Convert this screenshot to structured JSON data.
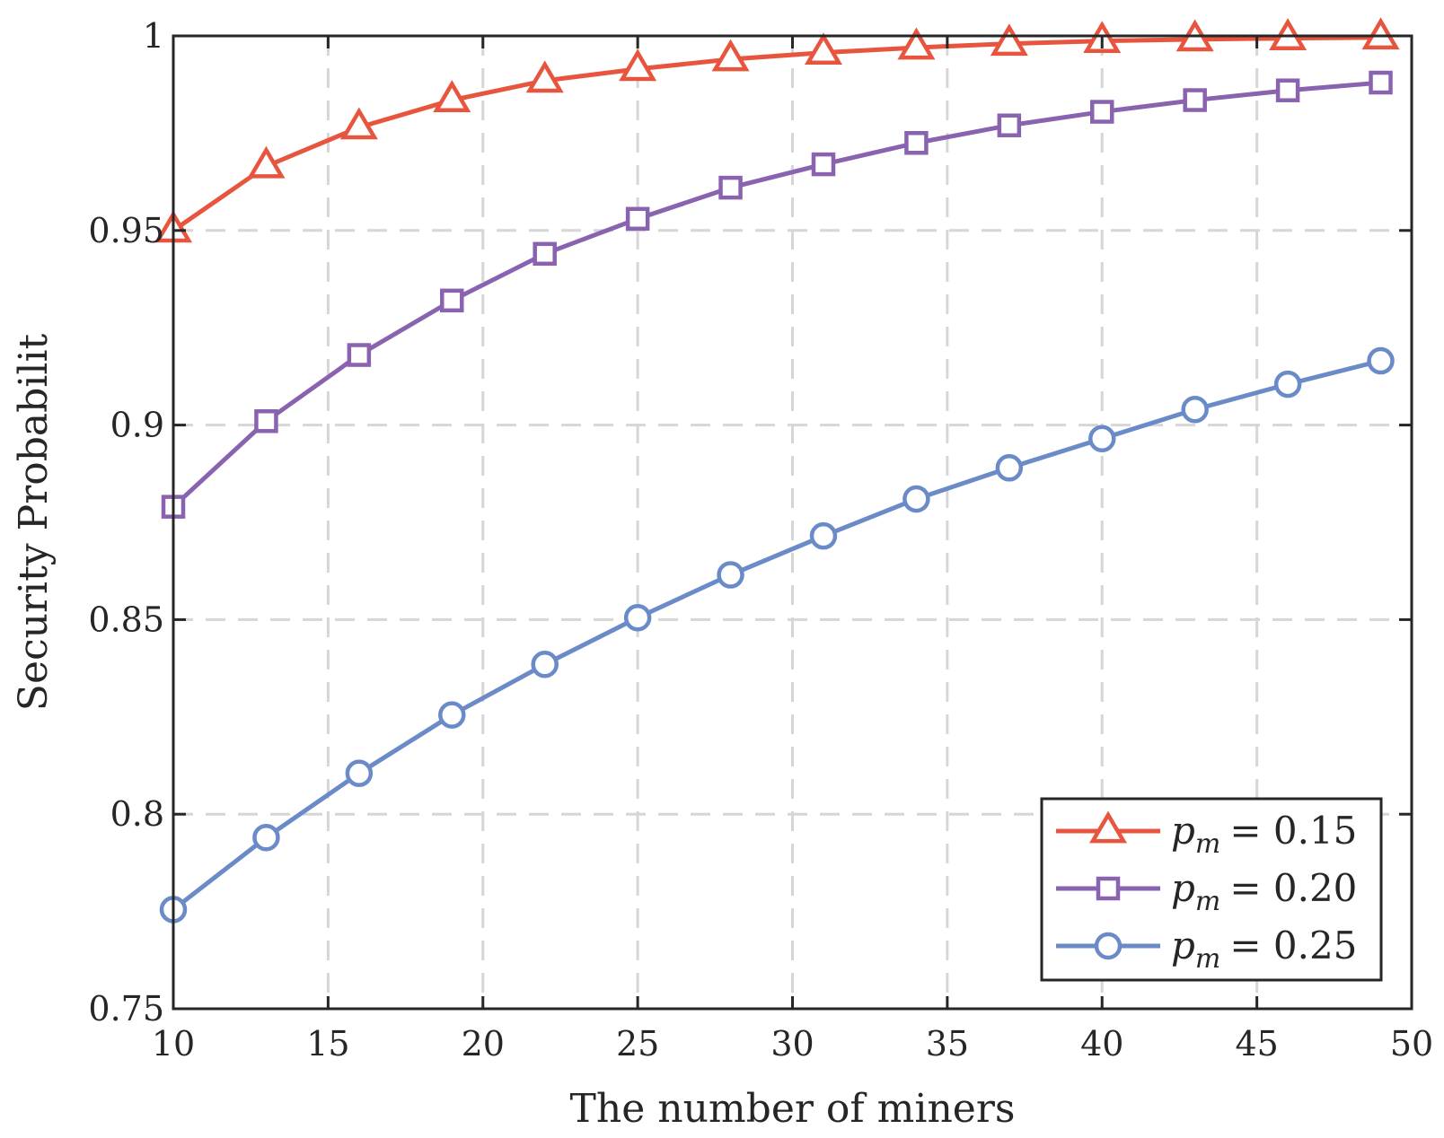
{
  "chart_data": {
    "type": "line",
    "title": "",
    "xlabel": "The number of miners",
    "ylabel": "Security Probabilit",
    "xlim": [
      10,
      50
    ],
    "ylim": [
      0.75,
      1.0
    ],
    "xticks": [
      10,
      15,
      20,
      25,
      30,
      35,
      40,
      45,
      50
    ],
    "xtick_labels": [
      "10",
      "15",
      "20",
      "25",
      "30",
      "35",
      "40",
      "45",
      "50"
    ],
    "yticks": [
      0.75,
      0.8,
      0.85,
      0.9,
      0.95,
      1.0
    ],
    "ytick_labels": [
      "0.75",
      "0.8",
      "0.85",
      "0.9",
      "0.95",
      "1"
    ],
    "grid": true,
    "legend_position": "bottom-right",
    "x": [
      10,
      13,
      16,
      19,
      22,
      25,
      28,
      31,
      34,
      37,
      40,
      43,
      46,
      49
    ],
    "series": [
      {
        "name": "p_m = 0.15",
        "legend_var": "p",
        "legend_sub": "m",
        "legend_value": "= 0.15",
        "color": "#e8553e",
        "marker": "triangle",
        "values": [
          0.95,
          0.9665,
          0.9765,
          0.9835,
          0.9885,
          0.9915,
          0.994,
          0.9957,
          0.997,
          0.998,
          0.9987,
          0.9991,
          0.9994,
          0.9996
        ]
      },
      {
        "name": "p_m = 0.20",
        "legend_var": "p",
        "legend_sub": "m",
        "legend_value": "= 0.20",
        "color": "#8a63b0",
        "marker": "square",
        "values": [
          0.879,
          0.901,
          0.918,
          0.932,
          0.944,
          0.953,
          0.961,
          0.967,
          0.9725,
          0.977,
          0.9805,
          0.9835,
          0.986,
          0.988
        ]
      },
      {
        "name": "p_m = 0.25",
        "legend_var": "p",
        "legend_sub": "m",
        "legend_value": "= 0.25",
        "color": "#6a8bc8",
        "marker": "circle",
        "values": [
          0.7755,
          0.794,
          0.8105,
          0.8255,
          0.8385,
          0.8505,
          0.8615,
          0.8715,
          0.881,
          0.889,
          0.8965,
          0.904,
          0.9105,
          0.9165
        ]
      }
    ]
  }
}
